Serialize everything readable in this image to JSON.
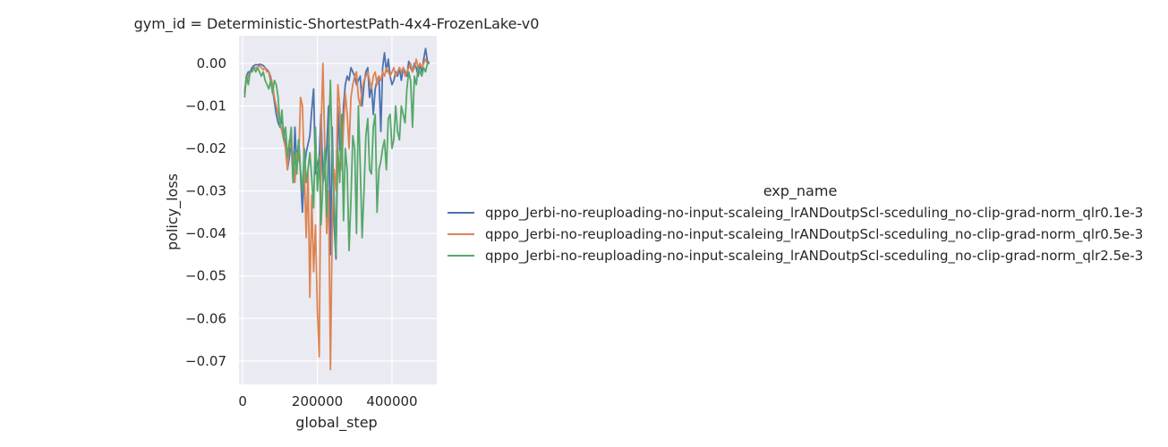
{
  "chart_data": {
    "type": "line",
    "title": "gym_id = Deterministic-ShortestPath-4x4-FrozenLake-v0",
    "xlabel": "global_step",
    "ylabel": "policy_loss",
    "xlim": [
      -10000,
      520000
    ],
    "ylim": [
      -0.0755,
      0.0065
    ],
    "xticks": [
      0,
      200000,
      400000
    ],
    "xtick_labels": [
      "0",
      "200000",
      "400000"
    ],
    "yticks": [
      0.0,
      -0.01,
      -0.02,
      -0.03,
      -0.04,
      -0.05,
      -0.06,
      -0.07
    ],
    "ytick_labels": [
      "0.00",
      "−0.01",
      "−0.02",
      "−0.03",
      "−0.04",
      "−0.05",
      "−0.06",
      "−0.07"
    ],
    "grid": true,
    "legend_title": "exp_name",
    "legend_placement": "right",
    "series": [
      {
        "name": "qppo_Jerbi-no-reuploading-no-input-scaleing_lrANDoutpScl-sceduling_no-clip-grad-norm_qlr0.1e-3",
        "color": "#4c72b0",
        "x": [
          5000,
          10000,
          15000,
          20000,
          25000,
          30000,
          35000,
          40000,
          45000,
          50000,
          55000,
          60000,
          65000,
          70000,
          75000,
          80000,
          85000,
          90000,
          95000,
          100000,
          105000,
          110000,
          115000,
          120000,
          125000,
          130000,
          135000,
          140000,
          145000,
          150000,
          155000,
          160000,
          165000,
          170000,
          175000,
          180000,
          185000,
          190000,
          195000,
          200000,
          205000,
          210000,
          215000,
          220000,
          225000,
          230000,
          235000,
          240000,
          245000,
          250000,
          255000,
          260000,
          265000,
          270000,
          275000,
          280000,
          285000,
          290000,
          295000,
          300000,
          305000,
          310000,
          315000,
          320000,
          325000,
          330000,
          335000,
          340000,
          345000,
          350000,
          355000,
          360000,
          365000,
          370000,
          375000,
          380000,
          385000,
          390000,
          395000,
          400000,
          405000,
          410000,
          415000,
          420000,
          425000,
          430000,
          435000,
          440000,
          445000,
          450000,
          455000,
          460000,
          465000,
          470000,
          475000,
          480000,
          485000,
          490000,
          495000,
          500000
        ],
        "values": [
          -0.007,
          -0.003,
          -0.002,
          -0.002,
          -0.001,
          -0.0005,
          -0.0003,
          -0.0004,
          -0.0002,
          -0.0003,
          -0.0005,
          -0.001,
          -0.0015,
          -0.002,
          -0.004,
          -0.006,
          -0.009,
          -0.012,
          -0.014,
          -0.015,
          -0.013,
          -0.016,
          -0.02,
          -0.025,
          -0.022,
          -0.018,
          -0.028,
          -0.015,
          -0.024,
          -0.018,
          -0.026,
          -0.035,
          -0.025,
          -0.021,
          -0.019,
          -0.017,
          -0.011,
          -0.006,
          -0.026,
          -0.024,
          -0.022,
          -0.012,
          -0.028,
          -0.026,
          -0.02,
          -0.01,
          -0.045,
          -0.015,
          -0.038,
          -0.046,
          -0.01,
          -0.02,
          -0.022,
          -0.01,
          -0.005,
          -0.003,
          -0.004,
          -0.001,
          -0.002,
          -0.003,
          -0.005,
          -0.004,
          -0.003,
          -0.01,
          -0.005,
          -0.002,
          -0.001,
          -0.008,
          -0.005,
          -0.012,
          -0.006,
          -0.004,
          -0.003,
          -0.016,
          -0.001,
          0.0025,
          -0.002,
          0.001,
          -0.003,
          -0.005,
          -0.004,
          -0.002,
          -0.003,
          -0.001,
          -0.004,
          -0.001,
          -0.002,
          -0.003,
          0.0005,
          -0.001,
          -0.002,
          0.0,
          -0.001,
          -0.003,
          0.0,
          -0.002,
          0.001,
          0.0035,
          0.0005,
          0.0
        ]
      },
      {
        "name": "qppo_Jerbi-no-reuploading-no-input-scaleing_lrANDoutpScl-sceduling_no-clip-grad-norm_qlr0.5e-3",
        "color": "#dd8452",
        "x": [
          5000,
          10000,
          15000,
          20000,
          25000,
          30000,
          35000,
          40000,
          45000,
          50000,
          55000,
          60000,
          65000,
          70000,
          75000,
          80000,
          85000,
          90000,
          95000,
          100000,
          105000,
          110000,
          115000,
          120000,
          125000,
          130000,
          135000,
          140000,
          145000,
          150000,
          155000,
          160000,
          165000,
          170000,
          175000,
          180000,
          185000,
          190000,
          195000,
          200000,
          205000,
          210000,
          215000,
          220000,
          225000,
          230000,
          235000,
          240000,
          245000,
          250000,
          255000,
          260000,
          265000,
          270000,
          275000,
          280000,
          285000,
          290000,
          295000,
          300000,
          305000,
          310000,
          315000,
          320000,
          325000,
          330000,
          335000,
          340000,
          345000,
          350000,
          355000,
          360000,
          365000,
          370000,
          375000,
          380000,
          385000,
          390000,
          395000,
          400000,
          405000,
          410000,
          415000,
          420000,
          425000,
          430000,
          435000,
          440000,
          445000,
          450000,
          455000,
          460000,
          465000,
          470000,
          475000,
          480000,
          485000,
          490000,
          495000,
          500000
        ],
        "values": [
          -0.006,
          -0.004,
          -0.003,
          -0.002,
          -0.002,
          -0.001,
          -0.001,
          -0.001,
          -0.0005,
          -0.001,
          -0.0015,
          -0.001,
          -0.002,
          -0.002,
          -0.003,
          -0.005,
          -0.008,
          -0.01,
          -0.012,
          -0.014,
          -0.016,
          -0.018,
          -0.02,
          -0.025,
          -0.018,
          -0.02,
          -0.022,
          -0.028,
          -0.021,
          -0.023,
          -0.008,
          -0.01,
          -0.025,
          -0.041,
          -0.025,
          -0.055,
          -0.031,
          -0.049,
          -0.038,
          -0.058,
          -0.069,
          -0.016,
          0.0,
          -0.02,
          -0.04,
          -0.03,
          -0.072,
          -0.038,
          -0.025,
          -0.03,
          -0.005,
          -0.01,
          -0.025,
          -0.015,
          -0.007,
          -0.012,
          -0.02,
          -0.008,
          -0.005,
          -0.003,
          -0.002,
          -0.008,
          -0.01,
          -0.006,
          -0.004,
          -0.003,
          -0.002,
          -0.004,
          -0.006,
          -0.003,
          -0.002,
          -0.005,
          -0.003,
          -0.004,
          -0.002,
          -0.003,
          -0.001,
          -0.002,
          -0.003,
          -0.002,
          -0.001,
          -0.003,
          -0.002,
          -0.001,
          -0.002,
          -0.001,
          -0.003,
          -0.002,
          -0.001,
          0.0,
          -0.002,
          -0.001,
          0.001,
          -0.001,
          0.0,
          -0.001,
          0.0,
          0.001,
          0.0,
          0.0
        ]
      },
      {
        "name": "qppo_Jerbi-no-reuploading-no-input-scaleing_lrANDoutpScl-sceduling_no-clip-grad-norm_qlr2.5e-3",
        "color": "#55a868",
        "x": [
          5000,
          10000,
          15000,
          20000,
          25000,
          30000,
          35000,
          40000,
          45000,
          50000,
          55000,
          60000,
          65000,
          70000,
          75000,
          80000,
          85000,
          90000,
          95000,
          100000,
          105000,
          110000,
          115000,
          120000,
          125000,
          130000,
          135000,
          140000,
          145000,
          150000,
          155000,
          160000,
          165000,
          170000,
          175000,
          180000,
          185000,
          190000,
          195000,
          200000,
          205000,
          210000,
          215000,
          220000,
          225000,
          230000,
          235000,
          240000,
          245000,
          250000,
          255000,
          260000,
          265000,
          270000,
          275000,
          280000,
          285000,
          290000,
          295000,
          300000,
          305000,
          310000,
          315000,
          320000,
          325000,
          330000,
          335000,
          340000,
          345000,
          350000,
          355000,
          360000,
          365000,
          370000,
          375000,
          380000,
          385000,
          390000,
          395000,
          400000,
          405000,
          410000,
          415000,
          420000,
          425000,
          430000,
          435000,
          440000,
          445000,
          450000,
          455000,
          460000,
          465000,
          470000,
          475000,
          480000,
          485000,
          490000,
          495000,
          500000
        ],
        "values": [
          -0.008,
          -0.003,
          -0.005,
          -0.002,
          -0.002,
          -0.001,
          -0.002,
          -0.001,
          -0.002,
          -0.003,
          -0.002,
          -0.004,
          -0.005,
          -0.006,
          -0.004,
          -0.007,
          -0.004,
          -0.005,
          -0.008,
          -0.015,
          -0.011,
          -0.018,
          -0.015,
          -0.022,
          -0.019,
          -0.015,
          -0.028,
          -0.021,
          -0.026,
          -0.018,
          -0.025,
          -0.03,
          -0.02,
          -0.028,
          -0.025,
          -0.021,
          -0.027,
          -0.034,
          -0.015,
          -0.03,
          -0.022,
          -0.038,
          -0.028,
          -0.02,
          -0.036,
          -0.018,
          -0.004,
          -0.023,
          -0.031,
          -0.045,
          -0.02,
          -0.028,
          -0.012,
          -0.037,
          -0.02,
          -0.025,
          -0.044,
          -0.032,
          -0.017,
          -0.02,
          -0.04,
          -0.01,
          -0.024,
          -0.041,
          -0.03,
          -0.017,
          -0.013,
          -0.025,
          -0.026,
          -0.015,
          -0.012,
          -0.035,
          -0.025,
          -0.023,
          -0.02,
          -0.018,
          -0.025,
          -0.013,
          -0.012,
          -0.02,
          -0.018,
          -0.01,
          -0.016,
          -0.018,
          -0.01,
          -0.012,
          -0.014,
          -0.006,
          -0.002,
          -0.004,
          -0.015,
          -0.003,
          -0.005,
          -0.001,
          -0.002,
          -0.003,
          -0.001,
          -0.002,
          0.0,
          0.0
        ]
      }
    ]
  }
}
